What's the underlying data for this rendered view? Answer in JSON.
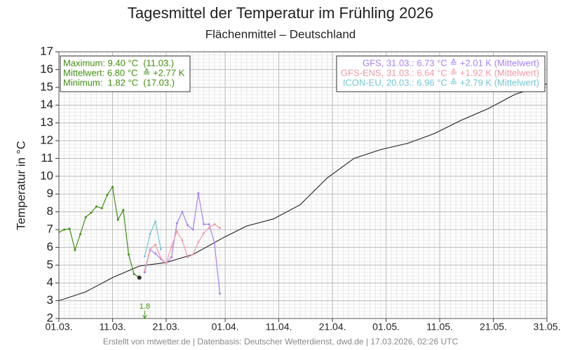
{
  "chart_data": {
    "type": "line",
    "title": "Tagesmittel der Temperatur im Frühling 2026",
    "subtitle": "Flächenmittel – Deutschland",
    "y_label": "Temperatur in °C",
    "footer": "Erstellt von mtwetter.de | Datenbasis: Deutscher Wetterdienst, dwd.de | 17.03.2026, 02:26 UTC",
    "xlim": [
      0,
      91
    ],
    "xticks": [
      {
        "value": 0,
        "label": "01.03."
      },
      {
        "value": 10,
        "label": "11.03."
      },
      {
        "value": 20,
        "label": "21.03."
      },
      {
        "value": 31,
        "label": "01.04."
      },
      {
        "value": 41,
        "label": "11.04."
      },
      {
        "value": 51,
        "label": "21.04."
      },
      {
        "value": 61,
        "label": "01.05."
      },
      {
        "value": 71,
        "label": "11.05."
      },
      {
        "value": 81,
        "label": "21.05."
      },
      {
        "value": 91,
        "label": "31.05."
      }
    ],
    "ylim": [
      2,
      17
    ],
    "yticks": [
      2,
      3,
      4,
      5,
      6,
      7,
      8,
      9,
      10,
      11,
      12,
      13,
      14,
      15,
      16,
      17
    ],
    "grid": true,
    "summary": [
      "Maximum: 9.40 °C  (11.03.)",
      "Mittelwert: 6.80 °C  ≙ +2.77 K",
      "Minimum:  1.82 °C  (17.03.)"
    ],
    "summary_color": "#3f8f0c",
    "annotation": {
      "x": 16,
      "value": 1.82,
      "label": "1.8",
      "color": "#3f8f0c"
    },
    "series": [
      {
        "color": "#333333",
        "markers": false,
        "x": [
          0,
          5,
          10,
          15,
          20,
          25,
          31,
          35,
          40,
          45,
          50,
          55,
          60,
          65,
          70,
          75,
          80,
          85,
          91
        ],
        "values": [
          3.0,
          3.5,
          4.3,
          4.95,
          5.15,
          5.6,
          6.6,
          7.2,
          7.6,
          8.4,
          9.9,
          11.0,
          11.5,
          11.85,
          12.4,
          13.15,
          13.8,
          14.6,
          15.2
        ]
      },
      {
        "color": "#3f8f0c",
        "markers": true,
        "x": [
          0,
          1,
          2,
          3,
          4,
          5,
          6,
          7,
          8,
          9,
          10,
          11,
          12,
          13,
          14,
          15
        ],
        "values": [
          6.85,
          7.0,
          7.05,
          5.85,
          6.75,
          7.7,
          7.95,
          8.3,
          8.2,
          8.95,
          9.4,
          7.55,
          8.1,
          5.6,
          4.5,
          4.3
        ]
      },
      {
        "name": "GFS, 31.03.: 6.73 °C ≙ +2.01 K (Mittelwert)",
        "color": "#a680f2",
        "markers": true,
        "x": [
          16,
          17,
          18,
          19,
          20,
          21,
          22,
          23,
          24,
          25,
          26,
          27,
          28,
          29,
          30
        ],
        "values": [
          4.6,
          5.85,
          5.65,
          5.35,
          5.1,
          5.45,
          7.35,
          8.0,
          7.25,
          7.0,
          9.05,
          7.3,
          7.3,
          6.25,
          3.4
        ]
      },
      {
        "name": "GFS-ENS, 31.03.: 6.64 °C ≙ +1.92 K (Mittelwert)",
        "color": "#f09aa8",
        "markers": true,
        "x": [
          16,
          17,
          18,
          19,
          20,
          21,
          22,
          23,
          24,
          25,
          26,
          27,
          28,
          29,
          30
        ],
        "values": [
          4.7,
          5.9,
          6.15,
          5.4,
          5.1,
          6.05,
          6.9,
          6.4,
          5.45,
          5.6,
          6.3,
          6.8,
          7.1,
          7.3,
          7.1
        ]
      },
      {
        "name": "ICON-EU, 20.03.: 6.96 °C ≙ +2.79 K (Mittelwert)",
        "color": "#72c6d2",
        "markers": true,
        "x": [
          16,
          17,
          18,
          19
        ],
        "values": [
          5.5,
          6.75,
          7.45,
          5.9
        ]
      }
    ]
  }
}
